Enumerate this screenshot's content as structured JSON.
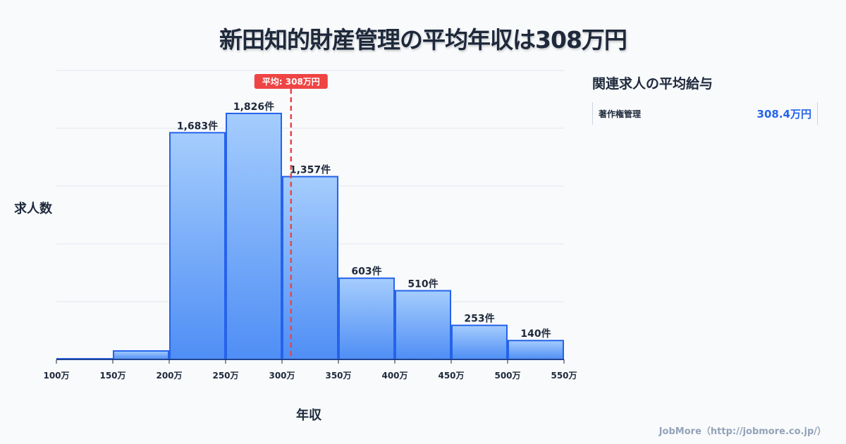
{
  "title": "新田知的財産管理の平均年収は308万円",
  "chart_data": {
    "type": "bar",
    "title": "新田知的財産管理の平均年収は308万円",
    "xlabel": "年収",
    "ylabel": "求人数",
    "bin_edges": [
      100,
      150,
      200,
      250,
      300,
      350,
      400,
      450,
      500,
      550
    ],
    "tick_labels": [
      "100万",
      "150万",
      "200万",
      "250万",
      "300万",
      "350万",
      "400万",
      "450万",
      "500万",
      "550万"
    ],
    "values": [
      5,
      63,
      1683,
      1826,
      1357,
      603,
      510,
      253,
      140
    ],
    "data_labels": [
      "",
      "",
      "1,683件",
      "1,826件",
      "1,357件",
      "603件",
      "510件",
      "253件",
      "140件"
    ],
    "ylim": [
      0,
      2145
    ],
    "xlim": [
      100,
      550
    ],
    "grid": true,
    "mean": {
      "value": 308,
      "label": "平均: 308万円",
      "color": "#ef4444"
    },
    "bar_color": "#60a5fa",
    "bar_edge": "#2563eb"
  },
  "sidebar": {
    "title": "関連求人の平均給与",
    "items": [
      {
        "name": "著作権管理",
        "value": "308.4万円"
      }
    ]
  },
  "footer": "JobMore（http://jobmore.co.jp/）"
}
